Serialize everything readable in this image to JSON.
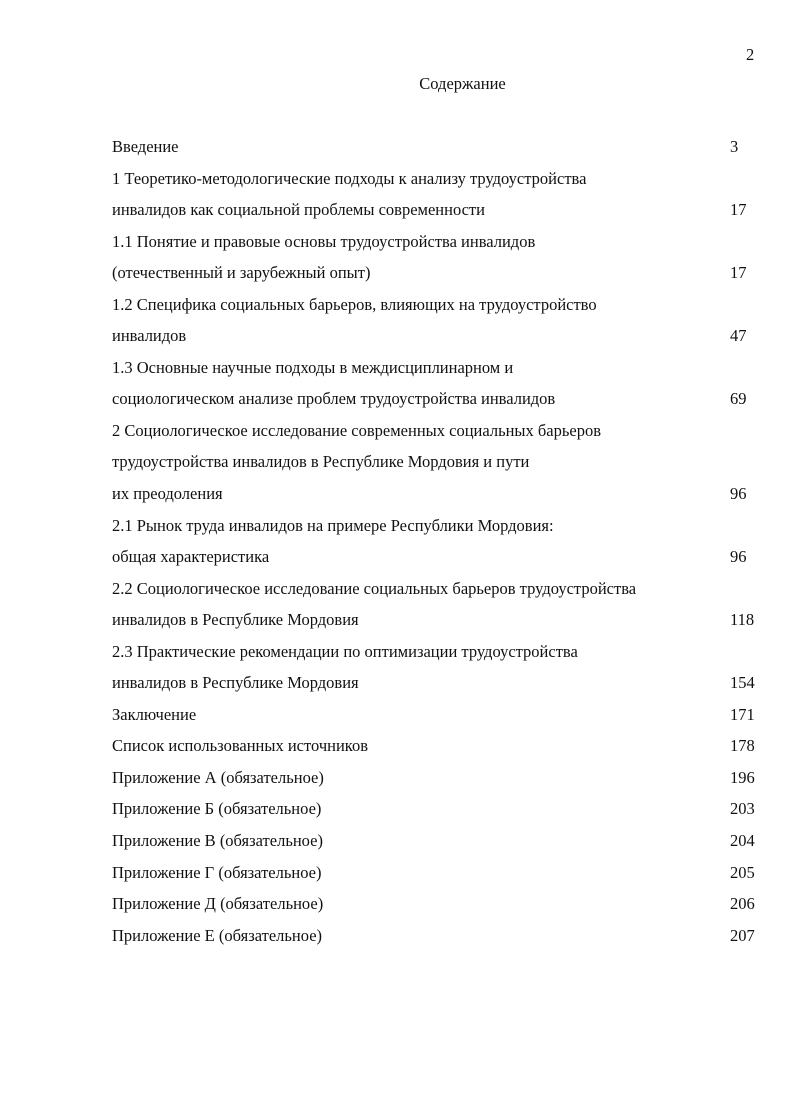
{
  "page_number": "2",
  "title": "Содержание",
  "entries": [
    {
      "lines": [
        "Введение"
      ],
      "page": "3"
    },
    {
      "lines": [
        "1 Теоретико-методологические подходы к анализу трудоустройства",
        "инвалидов как социальной проблемы современности"
      ],
      "page": "17"
    },
    {
      "lines": [
        "1.1 Понятие и правовые основы трудоустройства инвалидов",
        "(отечественный и зарубежный опыт)"
      ],
      "page": "17"
    },
    {
      "lines": [
        "1.2 Специфика социальных барьеров, влияющих на трудоустройство",
        "инвалидов"
      ],
      "page": "47"
    },
    {
      "lines": [
        "1.3 Основные научные подходы в междисциплинарном и",
        "социологическом анализе проблем трудоустройства инвалидов"
      ],
      "page": "69"
    },
    {
      "lines": [
        "2 Социологическое исследование современных социальных барьеров",
        "трудоустройства инвалидов в Республике Мордовия и пути",
        "их преодоления"
      ],
      "page": "96"
    },
    {
      "lines": [
        "2.1 Рынок труда инвалидов на примере Республики Мордовия:",
        "общая характеристика"
      ],
      "page": "96"
    },
    {
      "lines": [
        "2.2 Социологическое исследование социальных барьеров трудоустройства",
        "инвалидов в Республике Мордовия"
      ],
      "page": "118"
    },
    {
      "lines": [
        "2.3 Практические рекомендации по оптимизации  трудоустройства",
        "инвалидов в Республике Мордовия"
      ],
      "page": "154"
    },
    {
      "lines": [
        "Заключение"
      ],
      "page": "171"
    },
    {
      "lines": [
        "Список использованных источников"
      ],
      "page": "178"
    },
    {
      "lines": [
        "Приложение А (обязательное)"
      ],
      "page": "196"
    },
    {
      "lines": [
        "Приложение Б (обязательное)"
      ],
      "page": "203"
    },
    {
      "lines": [
        "Приложение В (обязательное)"
      ],
      "page": "204"
    },
    {
      "lines": [
        "Приложение Г (обязательное)"
      ],
      "page": "205"
    },
    {
      "lines": [
        "Приложение Д (обязательное)"
      ],
      "page": "206"
    },
    {
      "lines": [
        "Приложение Е (обязательное)"
      ],
      "page": "207"
    }
  ]
}
